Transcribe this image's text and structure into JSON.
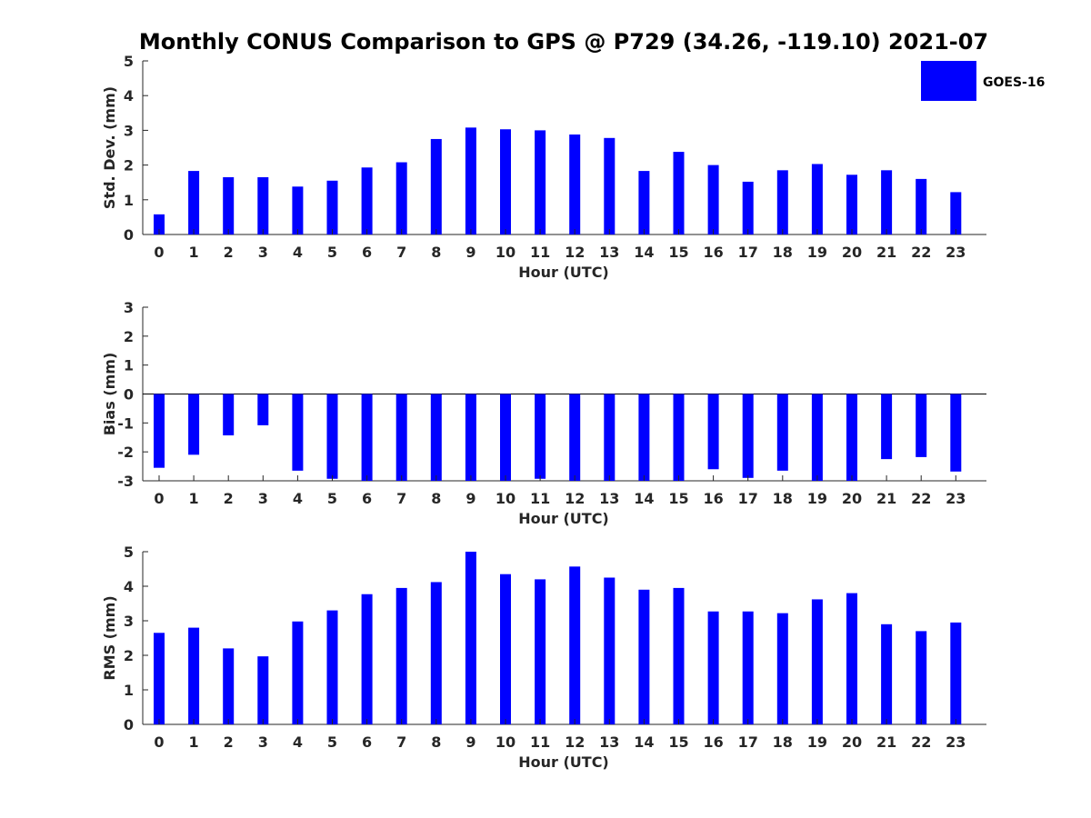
{
  "figure_title": "Monthly CONUS Comparison to GPS @ P729 (34.26, -119.10) 2021-07",
  "legend": {
    "label": "GOES-16",
    "color": "#0000FF",
    "placement": "top-right"
  },
  "bar_color": "#0000FF",
  "chart_data": [
    {
      "type": "bar",
      "title": "Monthly CONUS Comparison to GPS @ P729 (34.26, -119.10) 2021-07",
      "xlabel": "Hour (UTC)",
      "ylabel": "Std. Dev. (mm)",
      "ylim": [
        0,
        5
      ],
      "yticks": [
        0,
        1,
        2,
        3,
        4,
        5
      ],
      "categories": [
        "0",
        "1",
        "2",
        "3",
        "4",
        "5",
        "6",
        "7",
        "8",
        "9",
        "10",
        "11",
        "12",
        "13",
        "14",
        "15",
        "16",
        "17",
        "18",
        "19",
        "20",
        "21",
        "22",
        "23"
      ],
      "series": [
        {
          "name": "GOES-16",
          "values": [
            0.58,
            1.83,
            1.65,
            1.65,
            1.38,
            1.55,
            1.93,
            2.08,
            2.75,
            3.08,
            3.03,
            3.0,
            2.88,
            2.78,
            1.83,
            2.38,
            2.0,
            1.52,
            1.85,
            2.03,
            1.72,
            1.85,
            1.6,
            1.22
          ]
        }
      ],
      "grid": false,
      "legend": "top-right"
    },
    {
      "type": "bar",
      "xlabel": "Hour (UTC)",
      "ylabel": "Bias (mm)",
      "ylim": [
        -3,
        3
      ],
      "yticks": [
        -3,
        -2,
        -1,
        0,
        1,
        2,
        3
      ],
      "categories": [
        "0",
        "1",
        "2",
        "3",
        "4",
        "5",
        "6",
        "7",
        "8",
        "9",
        "10",
        "11",
        "12",
        "13",
        "14",
        "15",
        "16",
        "17",
        "18",
        "19",
        "20",
        "21",
        "22",
        "23"
      ],
      "series": [
        {
          "name": "GOES-16",
          "values": [
            -2.55,
            -2.1,
            -1.43,
            -1.08,
            -2.65,
            -2.93,
            -3.0,
            -3.0,
            -3.0,
            -3.0,
            -3.0,
            -2.93,
            -3.0,
            -3.0,
            -3.0,
            -3.0,
            -2.6,
            -2.9,
            -2.65,
            -3.0,
            -3.0,
            -2.25,
            -2.18,
            -2.68
          ]
        }
      ],
      "grid": false
    },
    {
      "type": "bar",
      "xlabel": "Hour (UTC)",
      "ylabel": "RMS (mm)",
      "ylim": [
        0,
        5
      ],
      "yticks": [
        0,
        1,
        2,
        3,
        4,
        5
      ],
      "categories": [
        "0",
        "1",
        "2",
        "3",
        "4",
        "5",
        "6",
        "7",
        "8",
        "9",
        "10",
        "11",
        "12",
        "13",
        "14",
        "15",
        "16",
        "17",
        "18",
        "19",
        "20",
        "21",
        "22",
        "23"
      ],
      "series": [
        {
          "name": "GOES-16",
          "values": [
            2.65,
            2.8,
            2.2,
            1.97,
            2.98,
            3.3,
            3.77,
            3.95,
            4.12,
            5.0,
            4.35,
            4.2,
            4.57,
            4.25,
            3.9,
            3.95,
            3.27,
            3.27,
            3.22,
            3.62,
            3.8,
            2.9,
            2.7,
            2.95
          ]
        }
      ],
      "grid": false
    }
  ]
}
